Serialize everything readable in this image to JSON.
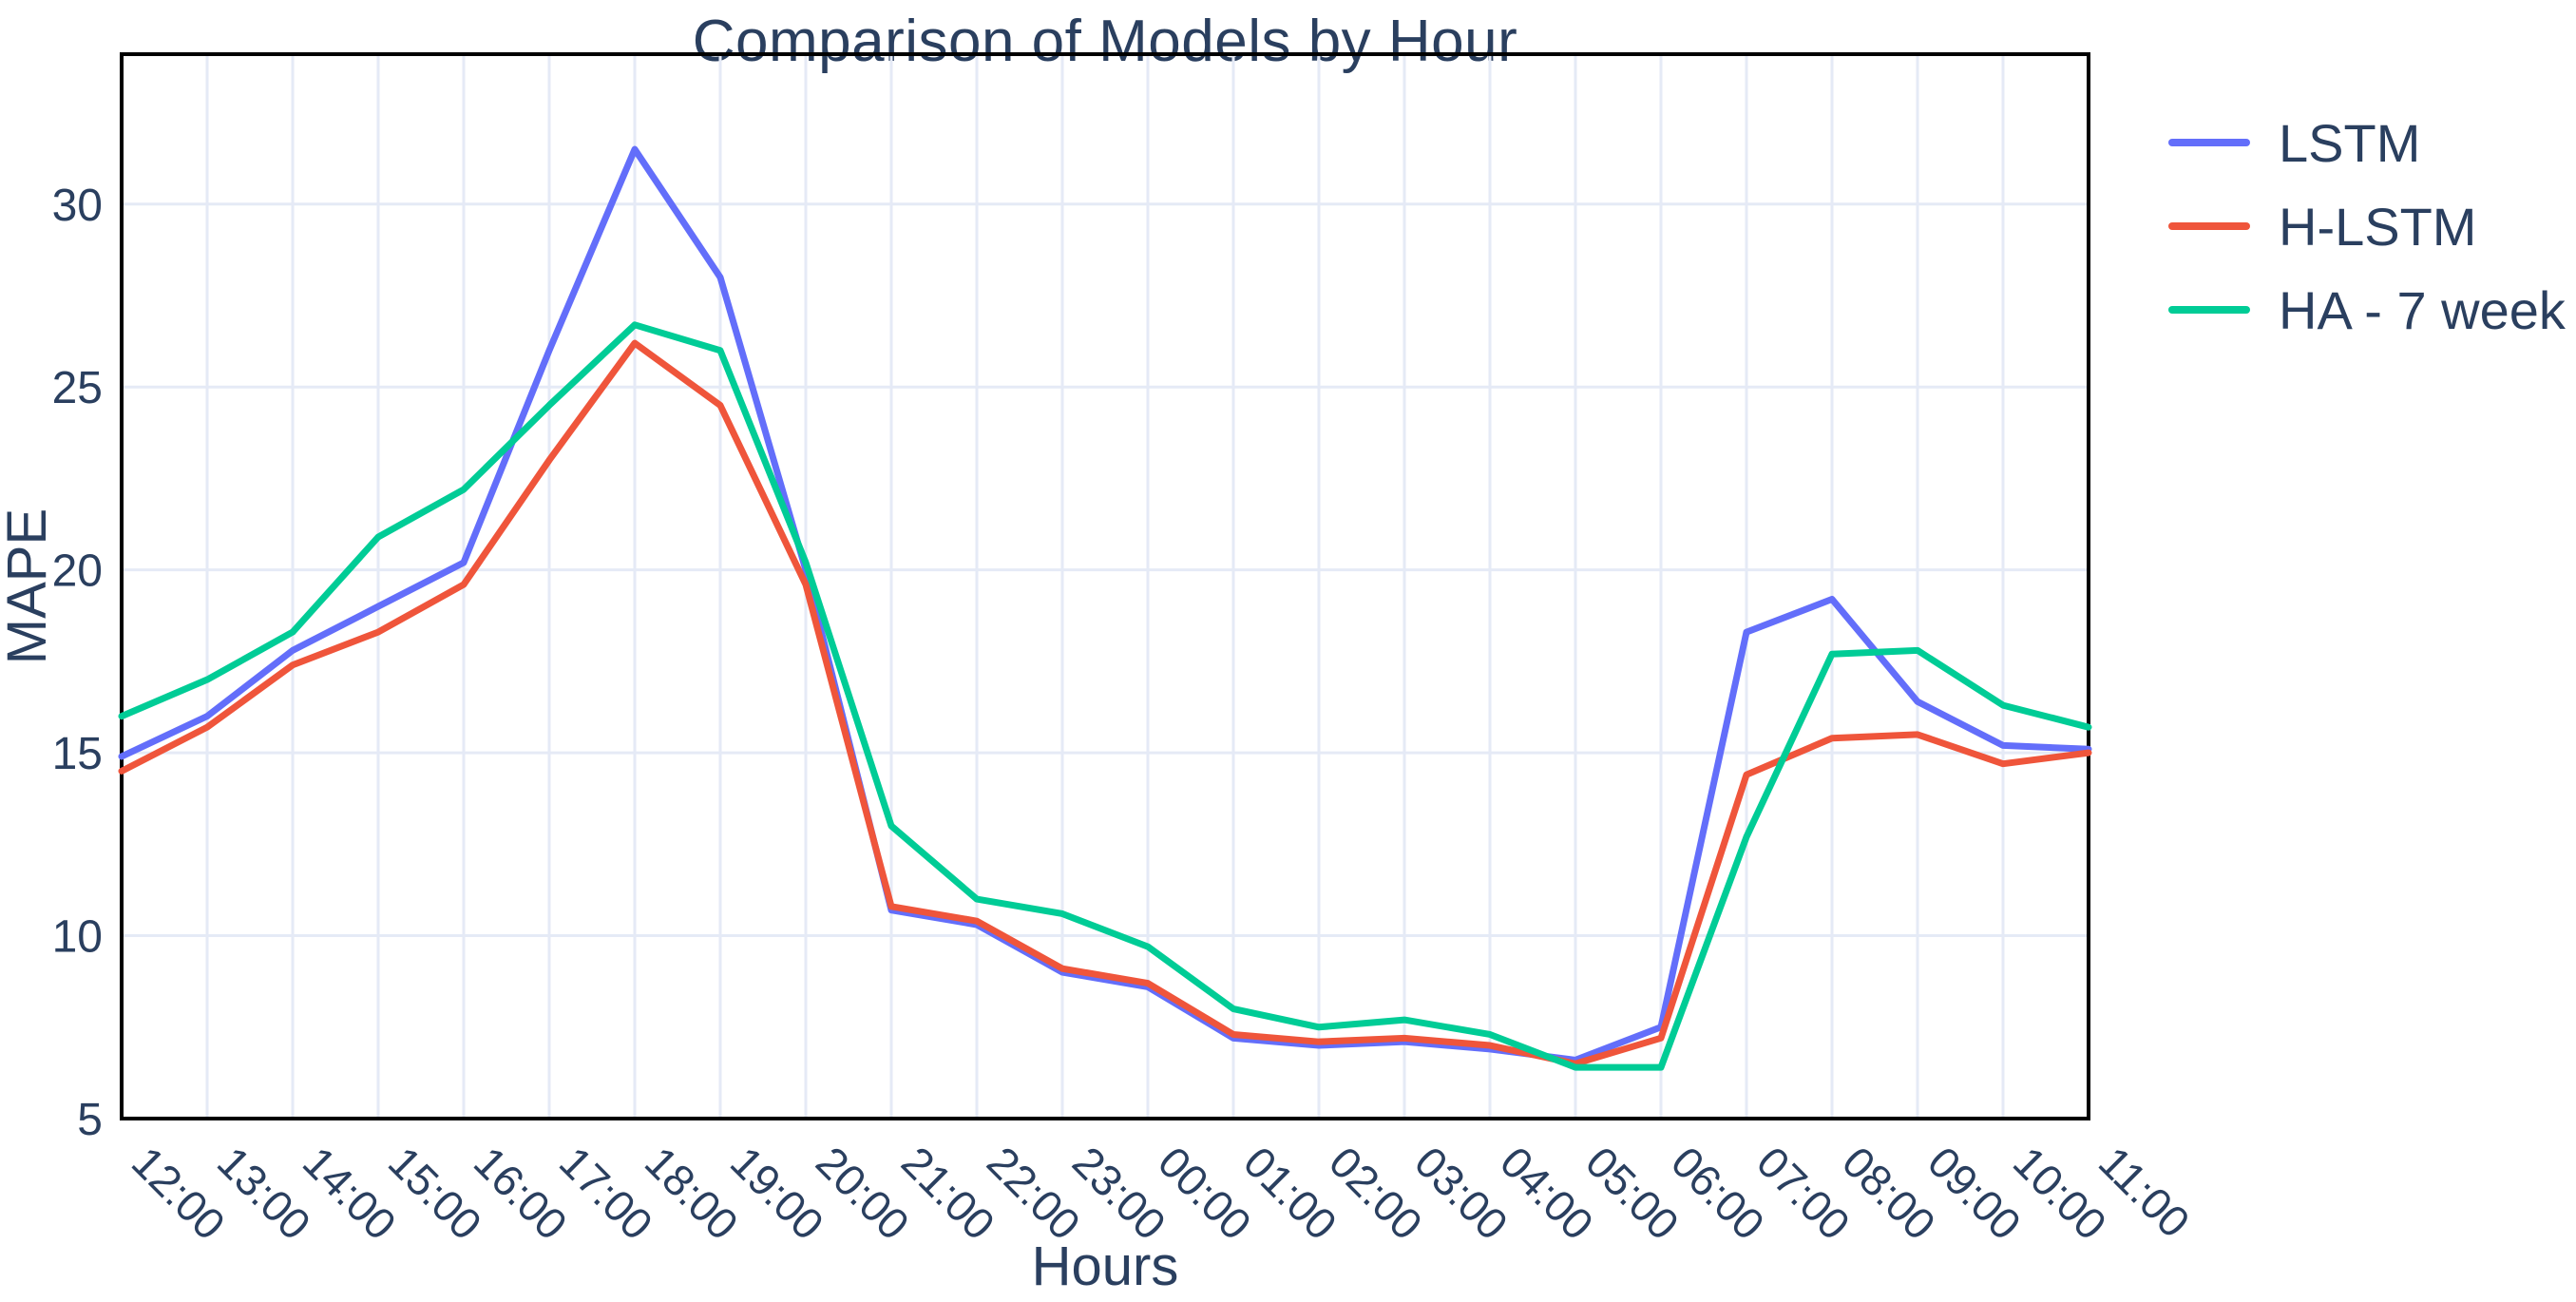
{
  "chart_data": {
    "type": "line",
    "title": "Comparison of Models by Hour",
    "xlabel": "Hours",
    "ylabel": "MAPE",
    "categories": [
      "12:00",
      "13:00",
      "14:00",
      "15:00",
      "16:00",
      "17:00",
      "18:00",
      "19:00",
      "20:00",
      "21:00",
      "22:00",
      "23:00",
      "00:00",
      "01:00",
      "02:00",
      "03:00",
      "04:00",
      "05:00",
      "06:00",
      "07:00",
      "08:00",
      "09:00",
      "10:00",
      "11:00"
    ],
    "y_ticks": [
      5,
      10,
      15,
      20,
      25,
      30
    ],
    "ylim": [
      5,
      34.1
    ],
    "grid": true,
    "legend_position": "outside-top-right",
    "series": [
      {
        "name": "LSTM",
        "color": "#636efa",
        "values": [
          14.9,
          16.0,
          17.8,
          19.0,
          20.2,
          26.0,
          31.5,
          28.0,
          20.0,
          10.7,
          10.3,
          9.0,
          8.6,
          7.2,
          7.0,
          7.1,
          6.9,
          6.6,
          7.5,
          18.3,
          19.2,
          16.4,
          15.2,
          15.1
        ]
      },
      {
        "name": "H-LSTM",
        "color": "#ef553b",
        "values": [
          14.5,
          15.7,
          17.4,
          18.3,
          19.6,
          23.0,
          26.2,
          24.5,
          19.6,
          10.8,
          10.4,
          9.1,
          8.7,
          7.3,
          7.1,
          7.2,
          7.0,
          6.5,
          7.2,
          14.4,
          15.4,
          15.5,
          14.7,
          15.0
        ]
      },
      {
        "name": "HA - 7 week",
        "color": "#00cc96",
        "values": [
          16.0,
          17.0,
          18.3,
          20.9,
          22.2,
          24.5,
          26.7,
          26.0,
          20.2,
          13.0,
          11.0,
          10.6,
          9.7,
          8.0,
          7.5,
          7.7,
          7.3,
          6.4,
          6.4,
          12.7,
          17.7,
          17.8,
          16.3,
          15.7
        ]
      }
    ],
    "style": {
      "text_color": "#2a3f5f",
      "grid_color": "#e5eaf6",
      "axis_color": "#000000",
      "background": "#ffffff",
      "line_width": 7
    }
  }
}
